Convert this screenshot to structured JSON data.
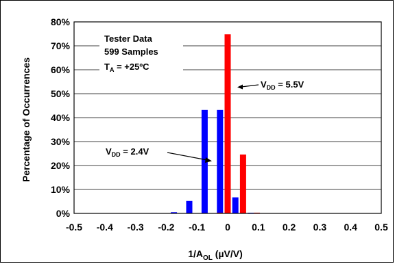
{
  "chart_data": {
    "type": "bar",
    "xlabel": "1/A",
    "xlabel_sub": "OL",
    "xlabel_unit": " (µV/V)",
    "ylabel": "Percentage of Occurrences",
    "x_ticks": [
      "-0.5",
      "-0.4",
      "-0.3",
      "-0.2",
      "-0.1",
      "0",
      "0.1",
      "0.2",
      "0.3",
      "0.4",
      "0.5"
    ],
    "y_ticks": [
      "0%",
      "10%",
      "20%",
      "30%",
      "40%",
      "50%",
      "60%",
      "70%",
      "80%"
    ],
    "xlim": [
      -0.5,
      0.5
    ],
    "ylim": [
      0,
      80
    ],
    "grid": "horizontal",
    "annotations": {
      "line1": "Tester Data",
      "line2": "599 Samples",
      "ta_main": "T",
      "ta_sub": "A",
      "ta_rest": " = +25ºC"
    },
    "series": [
      {
        "label_main": "V",
        "label_sub": "DD",
        "label_rest": " = 2.4V",
        "color": "#0000ff",
        "points": [
          {
            "x": -0.175,
            "y": 0.5
          },
          {
            "x": -0.125,
            "y": 5.2
          },
          {
            "x": -0.075,
            "y": 43.2
          },
          {
            "x": -0.025,
            "y": 43.2
          },
          {
            "x": 0.025,
            "y": 6.7
          },
          {
            "x": 0.075,
            "y": 0.2
          }
        ]
      },
      {
        "label_main": "V",
        "label_sub": "DD",
        "label_rest": " = 5.5V",
        "color": "#ff0000",
        "points": [
          {
            "x": -0.025,
            "y": 0.3
          },
          {
            "x": 0.0,
            "y": 74.8
          },
          {
            "x": 0.05,
            "y": 24.6
          },
          {
            "x": 0.095,
            "y": 0.3
          }
        ]
      }
    ]
  }
}
